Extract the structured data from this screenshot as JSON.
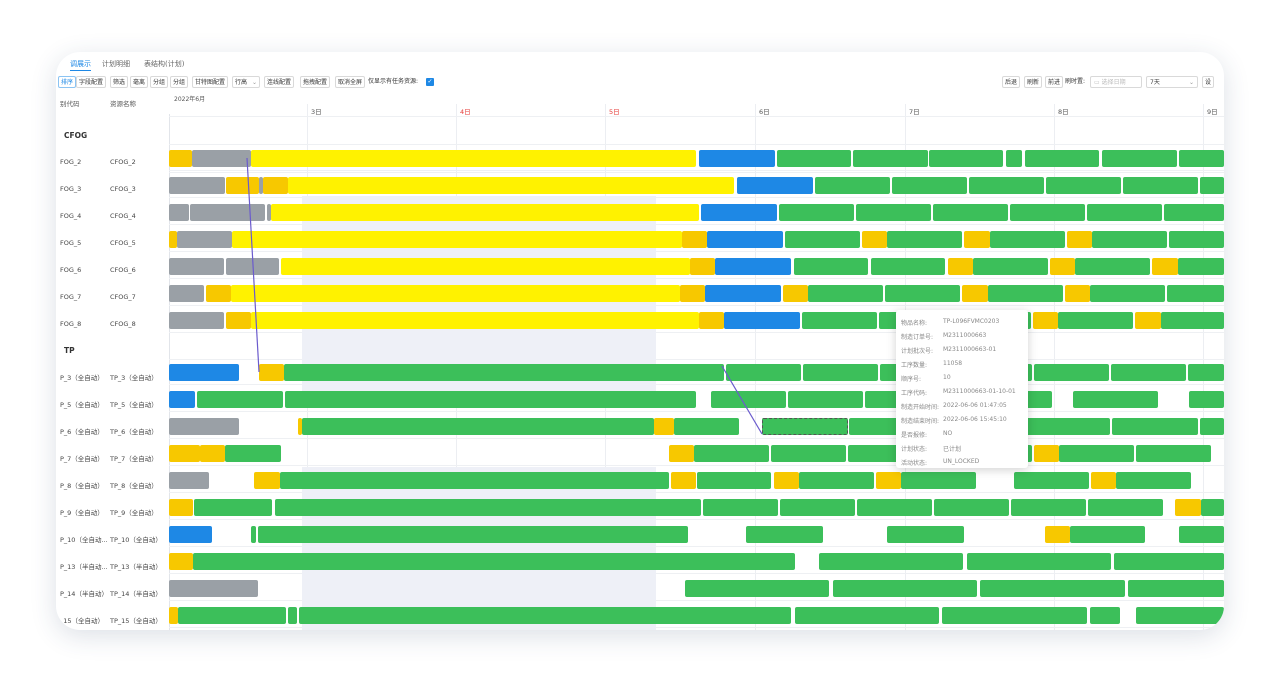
{
  "tabs": [
    {
      "label": "调展示",
      "active": true
    },
    {
      "label": "计划明细",
      "active": false
    },
    {
      "label": "表结构(计划)",
      "active": false
    }
  ],
  "toolbar": {
    "buttons": [
      "排序",
      "字段配置",
      "筛选",
      "毫离",
      "分组",
      "分组",
      "甘特图配置",
      "行高",
      "连线配置",
      "拖拽配置",
      "取消全屏"
    ],
    "only_label": "仅显示有任务资源:",
    "right_buttons": [
      "后退",
      "刷新",
      "前进"
    ],
    "time_label": "刷时置:",
    "date_placeholder": "选择日期",
    "range_value": "7天",
    "settings_label": "设"
  },
  "month_label": "2022年6月",
  "columns": {
    "code": "别代码",
    "name": "资源名称"
  },
  "days": [
    {
      "label": "3日",
      "red": false
    },
    {
      "label": "4日",
      "red": true
    },
    {
      "label": "5日",
      "red": true
    },
    {
      "label": "6日",
      "red": false
    },
    {
      "label": "7日",
      "red": false
    },
    {
      "label": "8日",
      "red": false
    },
    {
      "label": "9日",
      "red": false
    }
  ],
  "groups": {
    "cfog": "CFOG",
    "tp": "TP"
  },
  "rows": [
    {
      "code": "FOG_2",
      "name": "CFOG_2"
    },
    {
      "code": "FOG_3",
      "name": "CFOG_3"
    },
    {
      "code": "FOG_4",
      "name": "CFOG_4"
    },
    {
      "code": "FOG_5",
      "name": "CFOG_5"
    },
    {
      "code": "FOG_6",
      "name": "CFOG_6"
    },
    {
      "code": "FOG_7",
      "name": "CFOG_7"
    },
    {
      "code": "FOG_8",
      "name": "CFOG_8"
    },
    {
      "code": "P_3（全自动）",
      "name": "TP_3（全自动）"
    },
    {
      "code": "P_5（全自动）",
      "name": "TP_5（全自动）"
    },
    {
      "code": "P_6（全自动）",
      "name": "TP_6（全自动）"
    },
    {
      "code": "P_7（全自动）",
      "name": "TP_7（全自动）"
    },
    {
      "code": "P_8（全自动）",
      "name": "TP_8（全自动）"
    },
    {
      "code": "P_9（全自动）",
      "name": "TP_9（全自动）"
    },
    {
      "code": "P_10（全自动...",
      "name": "TP_10（全自动）"
    },
    {
      "code": "P_13（半自动...",
      "name": "TP_13（半自动）"
    },
    {
      "code": "P_14（半自动）",
      "name": "TP_14（半自动）"
    },
    {
      "code": "_15（全自动）",
      "name": "TP_15（全自动）"
    }
  ],
  "tooltip": [
    {
      "key": "物品名称:",
      "value": "TP-L096FVMC0203"
    },
    {
      "key": "制造订单号:",
      "value": "M2311000663"
    },
    {
      "key": "计划批次号:",
      "value": "M2311000663-01"
    },
    {
      "key": "工序数量:",
      "value": "11058"
    },
    {
      "key": "顺序号:",
      "value": "10"
    },
    {
      "key": "工序代码:",
      "value": "M2311000663-01-10-01"
    },
    {
      "key": "制造开始时间:",
      "value": "2022-06-06 01:47:05"
    },
    {
      "key": "制造结束时间:",
      "value": "2022-06-06 15:45:10"
    },
    {
      "key": "是否报修:",
      "value": "NO"
    },
    {
      "key": "计划状态:",
      "value": "已计划"
    },
    {
      "key": "活动状态:",
      "value": "UN_LOCKED"
    }
  ],
  "colors": {
    "gray": "#9aa0a6",
    "yellow": "#fff200",
    "gold": "#f7c800",
    "blue": "#1e88e5",
    "green": "#3cbf5a",
    "accent": "#1e88e5"
  },
  "bars": [
    [
      [
        "gold",
        0,
        0.022
      ],
      [
        "gray",
        0.022,
        0.078
      ],
      [
        "yellow",
        0.078,
        0.5
      ],
      [
        "blue",
        0.502,
        0.574
      ],
      [
        "green",
        0.576,
        0.646
      ],
      [
        "green",
        0.648,
        0.719
      ],
      [
        "green",
        0.72,
        0.791
      ],
      [
        "green",
        0.793,
        0.809
      ],
      [
        "green",
        0.811,
        0.882
      ],
      [
        "green",
        0.884,
        0.955
      ],
      [
        "green",
        0.957,
        1.028
      ]
    ],
    [
      [
        "gray",
        0,
        0.053
      ],
      [
        "gold",
        0.054,
        0.085
      ],
      [
        "gray",
        0.085,
        0.089
      ],
      [
        "gold",
        0.089,
        0.113
      ],
      [
        "yellow",
        0.113,
        0.536
      ],
      [
        "blue",
        0.538,
        0.61
      ],
      [
        "green",
        0.612,
        0.683
      ],
      [
        "green",
        0.685,
        0.756
      ],
      [
        "green",
        0.758,
        0.829
      ],
      [
        "green",
        0.831,
        0.902
      ],
      [
        "green",
        0.904,
        0.975
      ],
      [
        "green",
        0.977,
        1.048
      ]
    ],
    [
      [
        "gray",
        0,
        0.019
      ],
      [
        "gray",
        0.02,
        0.091
      ],
      [
        "gray",
        0.093,
        0.097
      ],
      [
        "yellow",
        0.097,
        0.502
      ],
      [
        "blue",
        0.504,
        0.576
      ],
      [
        "green",
        0.578,
        0.649
      ],
      [
        "green",
        0.651,
        0.722
      ],
      [
        "green",
        0.724,
        0.795
      ],
      [
        "green",
        0.797,
        0.868
      ],
      [
        "green",
        0.87,
        0.941
      ],
      [
        "green",
        0.943,
        1.014
      ]
    ],
    [
      [
        "gold",
        0,
        0.008
      ],
      [
        "gray",
        0.008,
        0.06
      ],
      [
        "yellow",
        0.06,
        0.486
      ],
      [
        "gold",
        0.486,
        0.51
      ],
      [
        "blue",
        0.51,
        0.582
      ],
      [
        "green",
        0.584,
        0.655
      ],
      [
        "gold",
        0.657,
        0.681
      ],
      [
        "green",
        0.681,
        0.752
      ],
      [
        "gold",
        0.754,
        0.778
      ],
      [
        "green",
        0.778,
        0.849
      ],
      [
        "gold",
        0.851,
        0.875
      ],
      [
        "green",
        0.875,
        0.946
      ],
      [
        "green",
        0.948,
        1.019
      ],
      [
        "gold",
        1.021,
        1.045
      ]
    ],
    [
      [
        "gray",
        0,
        0.052
      ],
      [
        "gray",
        0.054,
        0.104
      ],
      [
        "yellow",
        0.106,
        0.494
      ],
      [
        "gold",
        0.494,
        0.518
      ],
      [
        "blue",
        0.518,
        0.59
      ],
      [
        "green",
        0.592,
        0.663
      ],
      [
        "green",
        0.665,
        0.736
      ],
      [
        "gold",
        0.738,
        0.762
      ],
      [
        "green",
        0.762,
        0.833
      ],
      [
        "gold",
        0.835,
        0.859
      ],
      [
        "green",
        0.859,
        0.93
      ],
      [
        "gold",
        0.932,
        0.956
      ],
      [
        "green",
        0.956,
        1.027
      ]
    ],
    [
      [
        "gray",
        0,
        0.033
      ],
      [
        "gold",
        0.035,
        0.059
      ],
      [
        "yellow",
        0.059,
        0.484
      ],
      [
        "gold",
        0.484,
        0.508
      ],
      [
        "blue",
        0.508,
        0.58
      ],
      [
        "gold",
        0.582,
        0.606
      ],
      [
        "green",
        0.606,
        0.677
      ],
      [
        "green",
        0.679,
        0.75
      ],
      [
        "gold",
        0.752,
        0.776
      ],
      [
        "green",
        0.776,
        0.847
      ],
      [
        "gold",
        0.849,
        0.873
      ],
      [
        "green",
        0.873,
        0.944
      ],
      [
        "green",
        0.946,
        1.017
      ]
    ],
    [
      [
        "gray",
        0,
        0.052
      ],
      [
        "gold",
        0.054,
        0.078
      ],
      [
        "yellow",
        0.078,
        0.502
      ],
      [
        "gold",
        0.502,
        0.526
      ],
      [
        "blue",
        0.526,
        0.598
      ],
      [
        "green",
        0.6,
        0.671
      ],
      [
        "green",
        0.673,
        0.744
      ],
      [
        "green",
        0.746,
        0.817
      ],
      [
        "gold",
        0.819,
        0.843
      ],
      [
        "green",
        0.843,
        0.914
      ],
      [
        "gold",
        0.916,
        0.94
      ],
      [
        "green",
        0.94,
        1.011
      ],
      [
        "gold",
        1.013,
        1.037
      ]
    ],
    [
      [
        "blue",
        0,
        0.066
      ],
      [
        "gold",
        0.085,
        0.109
      ],
      [
        "green",
        0.109,
        0.526
      ],
      [
        "green",
        0.528,
        0.599
      ],
      [
        "green",
        0.601,
        0.672
      ],
      [
        "green",
        0.674,
        0.745
      ],
      [
        "green",
        0.747,
        0.818
      ],
      [
        "green",
        0.82,
        0.891
      ],
      [
        "green",
        0.893,
        0.964
      ],
      [
        "green",
        0.966,
        1.037
      ]
    ],
    [
      [
        "blue",
        0,
        0.025
      ],
      [
        "green",
        0.027,
        0.108
      ],
      [
        "green",
        0.11,
        0.5
      ],
      [
        "green",
        0.514,
        0.585
      ],
      [
        "green",
        0.587,
        0.658
      ],
      [
        "green",
        0.66,
        0.731
      ],
      [
        "green",
        0.757,
        0.837
      ],
      [
        "green",
        0.857,
        0.937
      ],
      [
        "green",
        0.967,
        1.047
      ]
    ],
    [
      [
        "gray",
        0,
        0.066
      ],
      [
        "gold",
        0.122,
        0.126
      ],
      [
        "green",
        0.126,
        0.46
      ],
      [
        "gold",
        0.46,
        0.479
      ],
      [
        "green",
        0.479,
        0.54
      ],
      [
        "green",
        0.562,
        0.643
      ],
      [
        "green",
        0.645,
        0.726
      ],
      [
        "green",
        0.728,
        0.809
      ],
      [
        "green",
        0.811,
        0.892
      ],
      [
        "green",
        0.894,
        0.975
      ],
      [
        "green",
        0.977,
        1.058
      ]
    ],
    [
      [
        "gold",
        0,
        0.029
      ],
      [
        "gold",
        0.029,
        0.053
      ],
      [
        "green",
        0.053,
        0.106
      ],
      [
        "gold",
        0.474,
        0.498
      ],
      [
        "green",
        0.498,
        0.569
      ],
      [
        "green",
        0.571,
        0.642
      ],
      [
        "green",
        0.644,
        0.715
      ],
      [
        "green",
        0.747,
        0.818
      ],
      [
        "gold",
        0.82,
        0.844
      ],
      [
        "green",
        0.844,
        0.915
      ],
      [
        "green",
        0.917,
        0.988
      ]
    ],
    [
      [
        "gray",
        0,
        0.038
      ],
      [
        "gold",
        0.081,
        0.105
      ],
      [
        "green",
        0.105,
        0.474
      ],
      [
        "gold",
        0.476,
        0.5
      ],
      [
        "green",
        0.5,
        0.571
      ],
      [
        "gold",
        0.573,
        0.597
      ],
      [
        "green",
        0.597,
        0.668
      ],
      [
        "gold",
        0.67,
        0.694
      ],
      [
        "green",
        0.694,
        0.765
      ],
      [
        "green",
        0.801,
        0.872
      ],
      [
        "gold",
        0.874,
        0.898
      ],
      [
        "green",
        0.898,
        0.969
      ]
    ],
    [
      [
        "gold",
        0,
        0.023
      ],
      [
        "green",
        0.024,
        0.098
      ],
      [
        "green",
        0.1,
        0.504
      ],
      [
        "green",
        0.506,
        0.577
      ],
      [
        "green",
        0.579,
        0.65
      ],
      [
        "green",
        0.652,
        0.723
      ],
      [
        "green",
        0.725,
        0.796
      ],
      [
        "green",
        0.798,
        0.869
      ],
      [
        "green",
        0.871,
        0.942
      ],
      [
        "gold",
        0.954,
        0.978
      ],
      [
        "green",
        0.978,
        1.049
      ]
    ],
    [
      [
        "blue",
        0,
        0.041
      ],
      [
        "green",
        0.078,
        0.082
      ],
      [
        "green",
        0.084,
        0.492
      ],
      [
        "green",
        0.547,
        0.62
      ],
      [
        "green",
        0.681,
        0.754
      ],
      [
        "gold",
        0.83,
        0.854
      ],
      [
        "green",
        0.854,
        0.925
      ],
      [
        "green",
        0.957,
        1.028
      ]
    ],
    [
      [
        "gold",
        0,
        0.023
      ],
      [
        "green",
        0.023,
        0.593
      ],
      [
        "green",
        0.616,
        0.753
      ],
      [
        "green",
        0.756,
        0.893
      ],
      [
        "green",
        0.896,
        1.033
      ]
    ],
    [
      [
        "gray",
        0,
        0.084
      ],
      [
        "green",
        0.489,
        0.626
      ],
      [
        "green",
        0.629,
        0.766
      ],
      [
        "green",
        0.769,
        0.906
      ],
      [
        "green",
        0.909,
        1.046
      ]
    ],
    [
      [
        "gold",
        0,
        0.009
      ],
      [
        "green",
        0.009,
        0.111
      ],
      [
        "green",
        0.113,
        0.121
      ],
      [
        "green",
        0.123,
        0.59
      ],
      [
        "green",
        0.593,
        0.73
      ],
      [
        "green",
        0.733,
        0.87
      ],
      [
        "green",
        0.873,
        0.901
      ],
      [
        "green",
        0.917,
        1.054
      ]
    ]
  ]
}
